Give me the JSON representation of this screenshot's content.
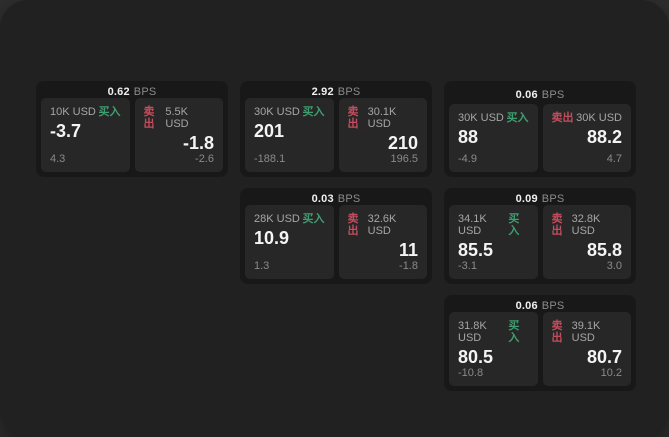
{
  "labels": {
    "buy": "买入",
    "sell": "卖出",
    "bps_suffix": "BPS"
  },
  "colors": {
    "buy": "#3f9e70",
    "sell": "#c24d5e",
    "panel_bg": "#212121",
    "card_bg": "#181818",
    "tile_bg": "#272727"
  },
  "cards": [
    {
      "bps": "0.62",
      "grid": {
        "row": 1,
        "col": 1
      },
      "buy": {
        "amount": "10K USD",
        "value": "-3.7",
        "delta": "4.3"
      },
      "sell": {
        "amount": "5.5K USD",
        "value": "-1.8",
        "delta": "-2.6"
      }
    },
    {
      "bps": "2.92",
      "grid": {
        "row": 1,
        "col": 2
      },
      "buy": {
        "amount": "30K USD",
        "value": "201",
        "delta": "-188.1"
      },
      "sell": {
        "amount": "30.1K USD",
        "value": "210",
        "delta": "196.5"
      }
    },
    {
      "bps": "0.06",
      "grid": {
        "row": 1,
        "col": 3
      },
      "buy": {
        "amount": "30K USD",
        "value": "88",
        "delta": "-4.9"
      },
      "sell": {
        "amount": "30K USD",
        "value": "88.2",
        "delta": "4.7"
      }
    },
    {
      "bps": "0.03",
      "grid": {
        "row": 2,
        "col": 2
      },
      "buy": {
        "amount": "28K USD",
        "value": "10.9",
        "delta": "1.3"
      },
      "sell": {
        "amount": "32.6K USD",
        "value": "11",
        "delta": "-1.8"
      }
    },
    {
      "bps": "0.09",
      "grid": {
        "row": 2,
        "col": 3
      },
      "buy": {
        "amount": "34.1K USD",
        "value": "85.5",
        "delta": "-3.1"
      },
      "sell": {
        "amount": "32.8K USD",
        "value": "85.8",
        "delta": "3.0"
      }
    },
    {
      "bps": "0.06",
      "grid": {
        "row": 3,
        "col": 3
      },
      "buy": {
        "amount": "31.8K USD",
        "value": "80.5",
        "delta": "-10.8"
      },
      "sell": {
        "amount": "39.1K USD",
        "value": "80.7",
        "delta": "10.2"
      }
    }
  ]
}
